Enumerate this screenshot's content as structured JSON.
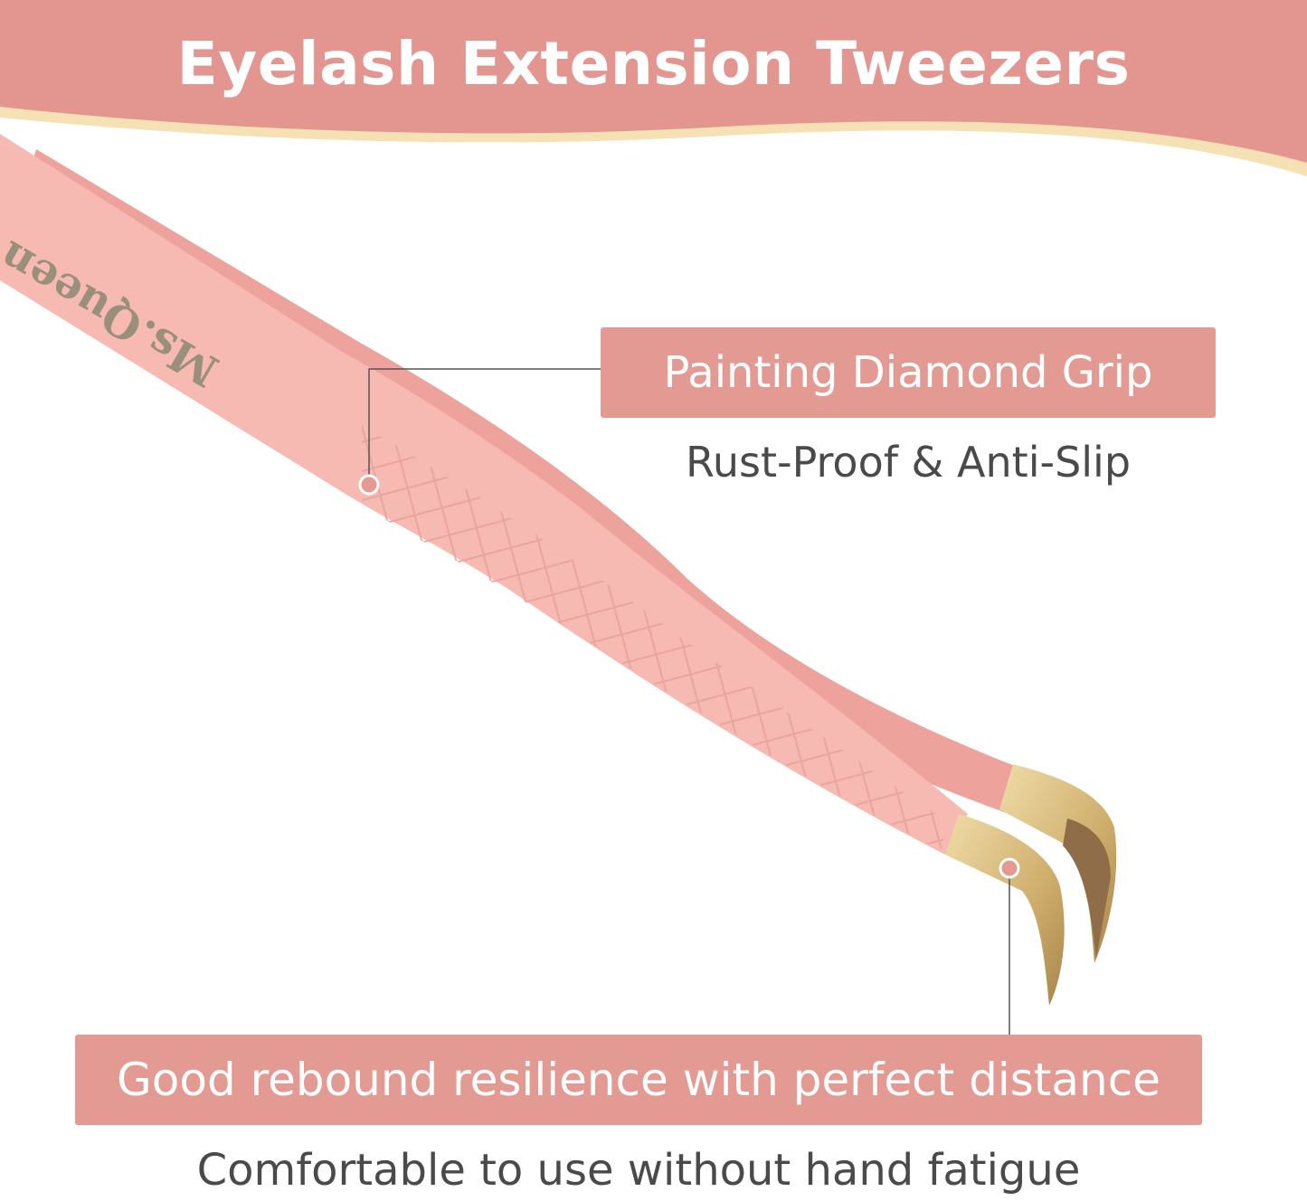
{
  "header": {
    "title": "Eyelash Extension Tweezers"
  },
  "product": {
    "brand_logo": "Ms.Queen"
  },
  "callouts": [
    {
      "label": "Painting Diamond Grip",
      "description": "Rust-Proof & Anti-Slip"
    },
    {
      "label": "Good rebound resilience with perfect distance",
      "description": "Comfortable to use without hand fatigue"
    }
  ],
  "colors": {
    "banner": "#e39590",
    "accent_stripe": "#f5e1b4",
    "tweezer_pink": "#f4b5ae",
    "tip_gold": "#d9b97a",
    "text_gray": "#4a4a4a"
  }
}
